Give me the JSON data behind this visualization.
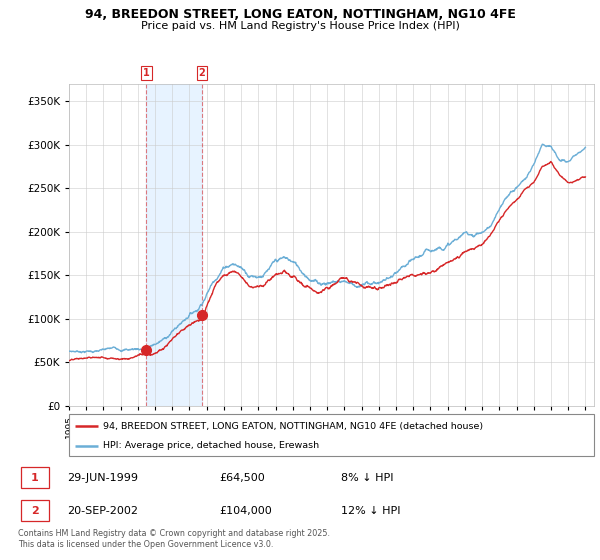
{
  "title": "94, BREEDON STREET, LONG EATON, NOTTINGHAM, NG10 4FE",
  "subtitle": "Price paid vs. HM Land Registry's House Price Index (HPI)",
  "legend_line1": "94, BREEDON STREET, LONG EATON, NOTTINGHAM, NG10 4FE (detached house)",
  "legend_line2": "HPI: Average price, detached house, Erewash",
  "transaction1_date": "29-JUN-1999",
  "transaction1_price": "£64,500",
  "transaction1_hpi": "8% ↓ HPI",
  "transaction1_year": 1999.493,
  "transaction1_value": 64500,
  "transaction2_date": "20-SEP-2002",
  "transaction2_price": "£104,000",
  "transaction2_hpi": "12% ↓ HPI",
  "transaction2_year": 2002.719,
  "transaction2_value": 104000,
  "footer": "Contains HM Land Registry data © Crown copyright and database right 2025.\nThis data is licensed under the Open Government Licence v3.0.",
  "hpi_color": "#6baed6",
  "price_color": "#d62728",
  "shaded_color": "#ddeeff",
  "ylim": [
    0,
    370000
  ],
  "yticks": [
    0,
    50000,
    100000,
    150000,
    200000,
    250000,
    300000,
    350000
  ],
  "xlim_start": 1995.0,
  "xlim_end": 2025.5
}
